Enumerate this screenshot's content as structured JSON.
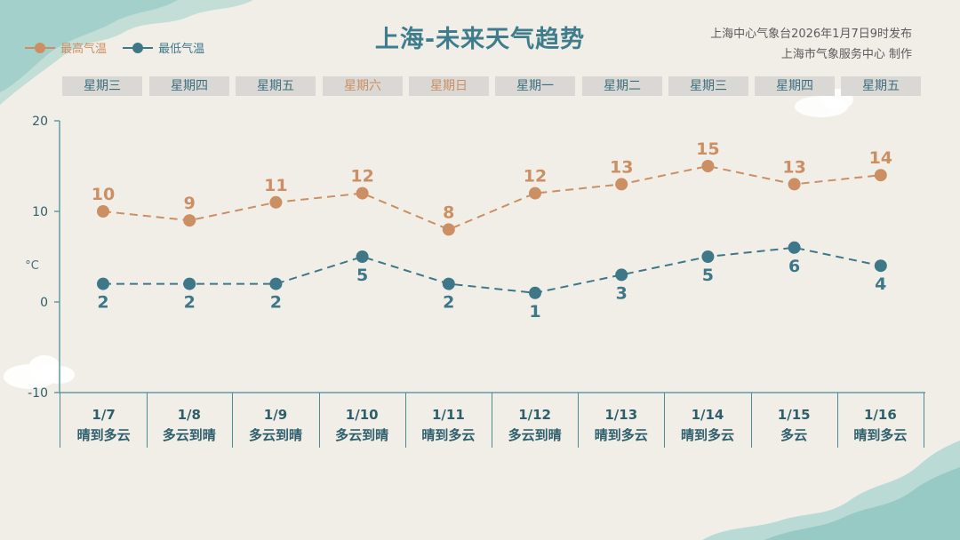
{
  "title": "上海-未来天气趋势",
  "issuer": {
    "line1": "上海中心气象台2026年1月7日9时发布",
    "line2": "上海市气象服务中心  制作"
  },
  "colors": {
    "high": "#cb8f63",
    "low": "#3e7888",
    "axis": "#5f9aa4",
    "weekend_text": "#cb8f63",
    "weekday_text": "#3c6f7d"
  },
  "chart_data": {
    "type": "line",
    "x": [
      "1/7",
      "1/8",
      "1/9",
      "1/10",
      "1/11",
      "1/12",
      "1/13",
      "1/14",
      "1/15",
      "1/16"
    ],
    "weekdays": [
      "星期三",
      "星期四",
      "星期五",
      "星期六",
      "星期日",
      "星期一",
      "星期二",
      "星期三",
      "星期四",
      "星期五"
    ],
    "weather": [
      "晴到多云",
      "多云到晴",
      "多云到晴",
      "多云到晴",
      "晴到多云",
      "多云到晴",
      "晴到多云",
      "晴到多云",
      "多云",
      "晴到多云"
    ],
    "series": [
      {
        "name": "最高气温",
        "values": [
          10,
          9,
          11,
          12,
          8,
          12,
          13,
          15,
          13,
          14
        ]
      },
      {
        "name": "最低气温",
        "values": [
          2,
          2,
          2,
          5,
          2,
          1,
          3,
          5,
          6,
          4
        ]
      }
    ],
    "ylabel": "°C",
    "ylim": [
      -10,
      20
    ],
    "yticks": [
      20,
      10,
      0,
      -10
    ],
    "line_style": "dashed",
    "legend": "top-left"
  }
}
